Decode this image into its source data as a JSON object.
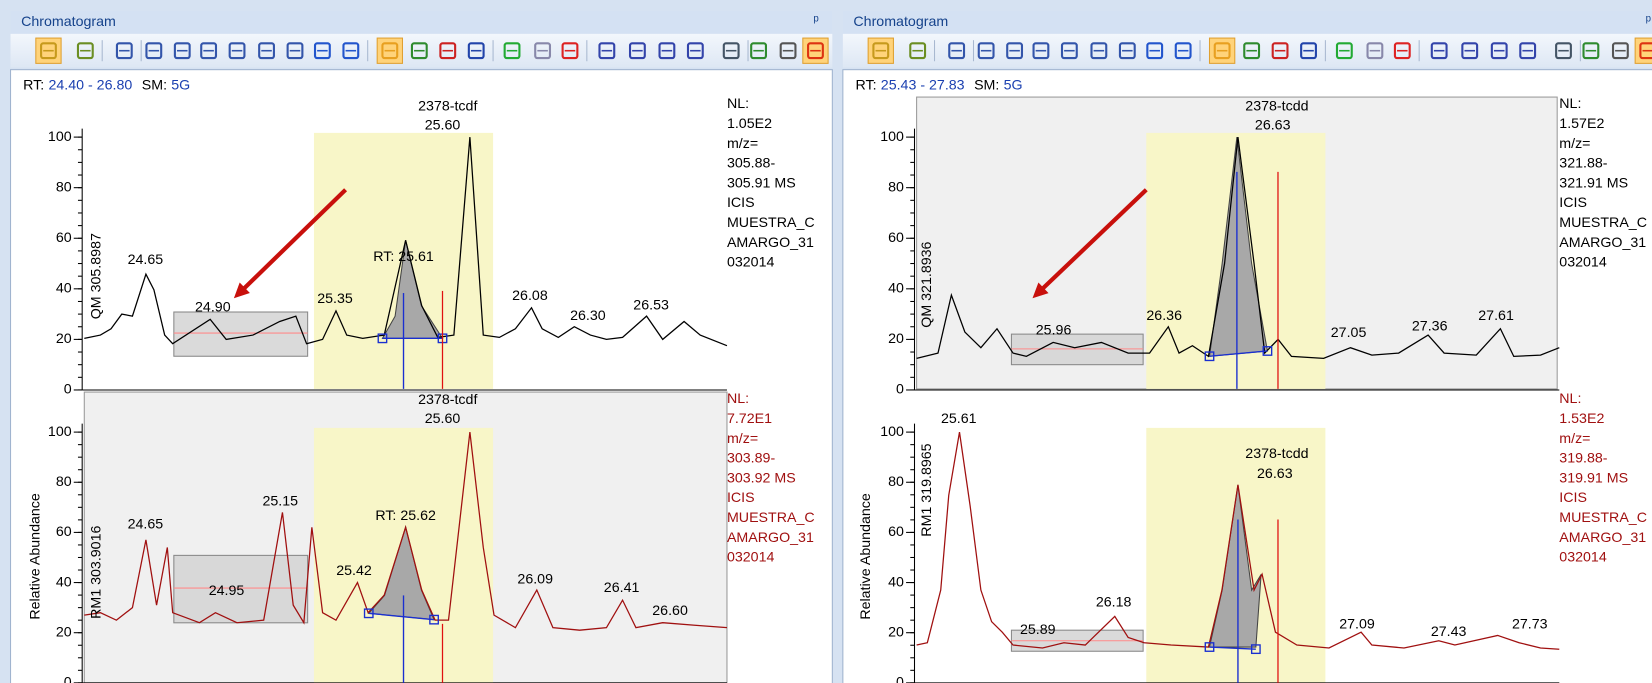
{
  "panels": [
    {
      "title": "Chromatogram",
      "header": {
        "rt_label": "RT:",
        "rt_range": "24.40 - 26.80",
        "sm_label": "SM:",
        "sm": "5G"
      },
      "plots": [
        {
          "ylabel": "QM 305.8987",
          "xlim": [
            24.4,
            26.8
          ],
          "ylim": [
            0,
            100
          ],
          "yticks": [
            0,
            20,
            40,
            60,
            80,
            100
          ],
          "color": "#000000",
          "peak_name": "2378-tcdf",
          "peak_rt": "25.60",
          "rt_label": "RT: 25.61",
          "peaks": [
            "24.65",
            "24.90",
            "25.35",
            "26.08",
            "26.30",
            "26.53"
          ],
          "info": [
            "NL:",
            "1.05E2",
            "m/z=",
            "305.88-",
            "305.91  MS",
            "ICIS",
            "MUESTRA_C",
            "AMARGO_31",
            "032014"
          ],
          "trace": {
            "rt": [
              24.4,
              24.46,
              24.5,
              24.54,
              24.58,
              24.63,
              24.66,
              24.7,
              24.73,
              24.87,
              24.93,
              25.03,
              25.13,
              25.19,
              25.23,
              25.29,
              25.34,
              25.38,
              25.44,
              25.52,
              25.6,
              25.66,
              25.72,
              25.78,
              25.84,
              25.89,
              25.95,
              26.01,
              26.07,
              26.11,
              26.17,
              26.23,
              26.29,
              26.35,
              26.41,
              26.5,
              26.56,
              26.64,
              26.7,
              26.8
            ],
            "values": [
              20.4,
              21.7,
              24.2,
              30,
              29.2,
              45.8,
              39.6,
              21.7,
              18.3,
              27.9,
              20,
              21.7,
              27.1,
              29.2,
              18.3,
              20,
              31.3,
              21.7,
              20.4,
              21.7,
              59.2,
              33.3,
              20.8,
              21.7,
              100,
              21.7,
              20.8,
              24.2,
              32.5,
              24.2,
              20.8,
              25,
              21.7,
              20,
              20.8,
              29.2,
              20,
              27.1,
              21.7,
              17.5
            ]
          }
        },
        {
          "ylabel": "RM1 303.9016",
          "ylabel2": "Relative Abundance",
          "xlim": [
            24.4,
            26.8
          ],
          "ylim": [
            0,
            100
          ],
          "yticks": [
            0,
            20,
            40,
            60,
            80,
            100
          ],
          "color": "#a01010",
          "peak_name": "2378-tcdf",
          "peak_rt": "25.60",
          "rt_label": "RT: 25.62",
          "peaks": [
            "24.65",
            "24.95",
            "25.15",
            "25.42",
            "26.09",
            "26.41",
            "26.60"
          ],
          "info": [
            "NL:",
            "7.72E1",
            "m/z=",
            "303.89-",
            "303.92  MS",
            "ICIS",
            "MUESTRA_C",
            "AMARGO_31",
            "032014"
          ],
          "trace": {
            "rt": [
              24.4,
              24.46,
              24.52,
              24.58,
              24.63,
              24.67,
              24.71,
              24.73,
              24.83,
              24.89,
              24.97,
              25.07,
              25.14,
              25.18,
              25.22,
              25.25,
              25.29,
              25.34,
              25.42,
              25.46,
              25.52,
              25.6,
              25.66,
              25.71,
              25.76,
              25.84,
              25.89,
              25.93,
              26.01,
              26.09,
              26.15,
              26.25,
              26.35,
              26.41,
              26.46,
              26.56,
              26.68,
              26.8
            ],
            "values": [
              27,
              28,
              25,
              30,
              57,
              31,
              54,
              28,
              24,
              28,
              24,
              25,
              68,
              31,
              24,
              62,
              28,
              25,
              40,
              28,
              35,
              62,
              37,
              25,
              25,
              100,
              54,
              27,
              22,
              37,
              22,
              21,
              22,
              33,
              22,
              24,
              23,
              22
            ]
          }
        }
      ]
    },
    {
      "title": "Chromatogram",
      "header": {
        "rt_label": "RT:",
        "rt_range": "25.43 - 27.83",
        "sm_label": "SM:",
        "sm": "5G"
      },
      "plots": [
        {
          "ylabel": "QM 321.8936",
          "xlim": [
            25.43,
            27.83
          ],
          "ylim": [
            0,
            100
          ],
          "yticks": [
            0,
            20,
            40,
            60,
            80,
            100
          ],
          "color": "#000000",
          "peak_name": "2378-tcdd",
          "peak_rt": "26.63",
          "peaks": [
            "25.96",
            "26.36",
            "27.05",
            "27.36",
            "27.61"
          ],
          "info": [
            "NL:",
            "1.57E2",
            "m/z=",
            "321.88-",
            "321.91  MS",
            "ICIS",
            "MUESTRA_C",
            "AMARGO_31",
            "032014"
          ],
          "trace": {
            "rt": [
              25.43,
              25.51,
              25.56,
              25.61,
              25.67,
              25.73,
              25.79,
              25.84,
              25.94,
              26.02,
              26.12,
              26.22,
              26.3,
              26.37,
              26.41,
              26.46,
              26.52,
              26.58,
              26.63,
              26.69,
              26.73,
              26.78,
              26.83,
              26.95,
              27.05,
              27.13,
              27.23,
              27.34,
              27.4,
              27.52,
              27.61,
              27.66,
              27.76,
              27.83
            ],
            "values": [
              12.5,
              14.6,
              37.5,
              22.9,
              16.7,
              24.2,
              14.6,
              13.3,
              18.8,
              16.7,
              18.8,
              14.6,
              14.6,
              25,
              14.6,
              17.5,
              13.3,
              50,
              100,
              50,
              14.6,
              20,
              13.3,
              12.5,
              16.7,
              13.8,
              14.6,
              21.7,
              14.6,
              13.8,
              24.2,
              13.3,
              13.8,
              16.7
            ]
          }
        },
        {
          "ylabel": "RM1 319.8965",
          "ylabel2": "Relative Abundance",
          "xlim": [
            25.43,
            27.83
          ],
          "ylim": [
            0,
            100
          ],
          "yticks": [
            0,
            20,
            40,
            60,
            80,
            100
          ],
          "color": "#a01010",
          "peak_name": "2378-tcdd",
          "peak_rt": "26.63",
          "peaks": [
            "25.61",
            "25.89",
            "26.18",
            "27.09",
            "27.43",
            "27.73"
          ],
          "info": [
            "NL:",
            "1.53E2",
            "m/z=",
            "319.88-",
            "319.91  MS",
            "ICIS",
            "MUESTRA_C",
            "AMARGO_31",
            "032014"
          ],
          "trace": {
            "rt": [
              25.43,
              25.47,
              25.52,
              25.55,
              25.59,
              25.63,
              25.67,
              25.71,
              25.75,
              25.79,
              25.9,
              25.98,
              26.06,
              26.17,
              26.22,
              26.28,
              26.38,
              26.52,
              26.57,
              26.63,
              26.69,
              26.72,
              26.77,
              26.85,
              26.97,
              27.09,
              27.13,
              27.25,
              27.38,
              27.44,
              27.6,
              27.68,
              27.76,
              27.83
            ],
            "values": [
              15.1,
              16,
              37,
              74.8,
              100,
              70.6,
              37,
              24.4,
              20.2,
              15.1,
              13.9,
              16,
              15.1,
              26.5,
              18.1,
              16,
              15.1,
              14.3,
              37,
              79,
              37,
              43.3,
              20.2,
              15.1,
              13.9,
              20.2,
              15.1,
              13.9,
              16.8,
              15.1,
              18.9,
              16,
              13.9,
              13.4
            ]
          }
        }
      ]
    }
  ]
}
